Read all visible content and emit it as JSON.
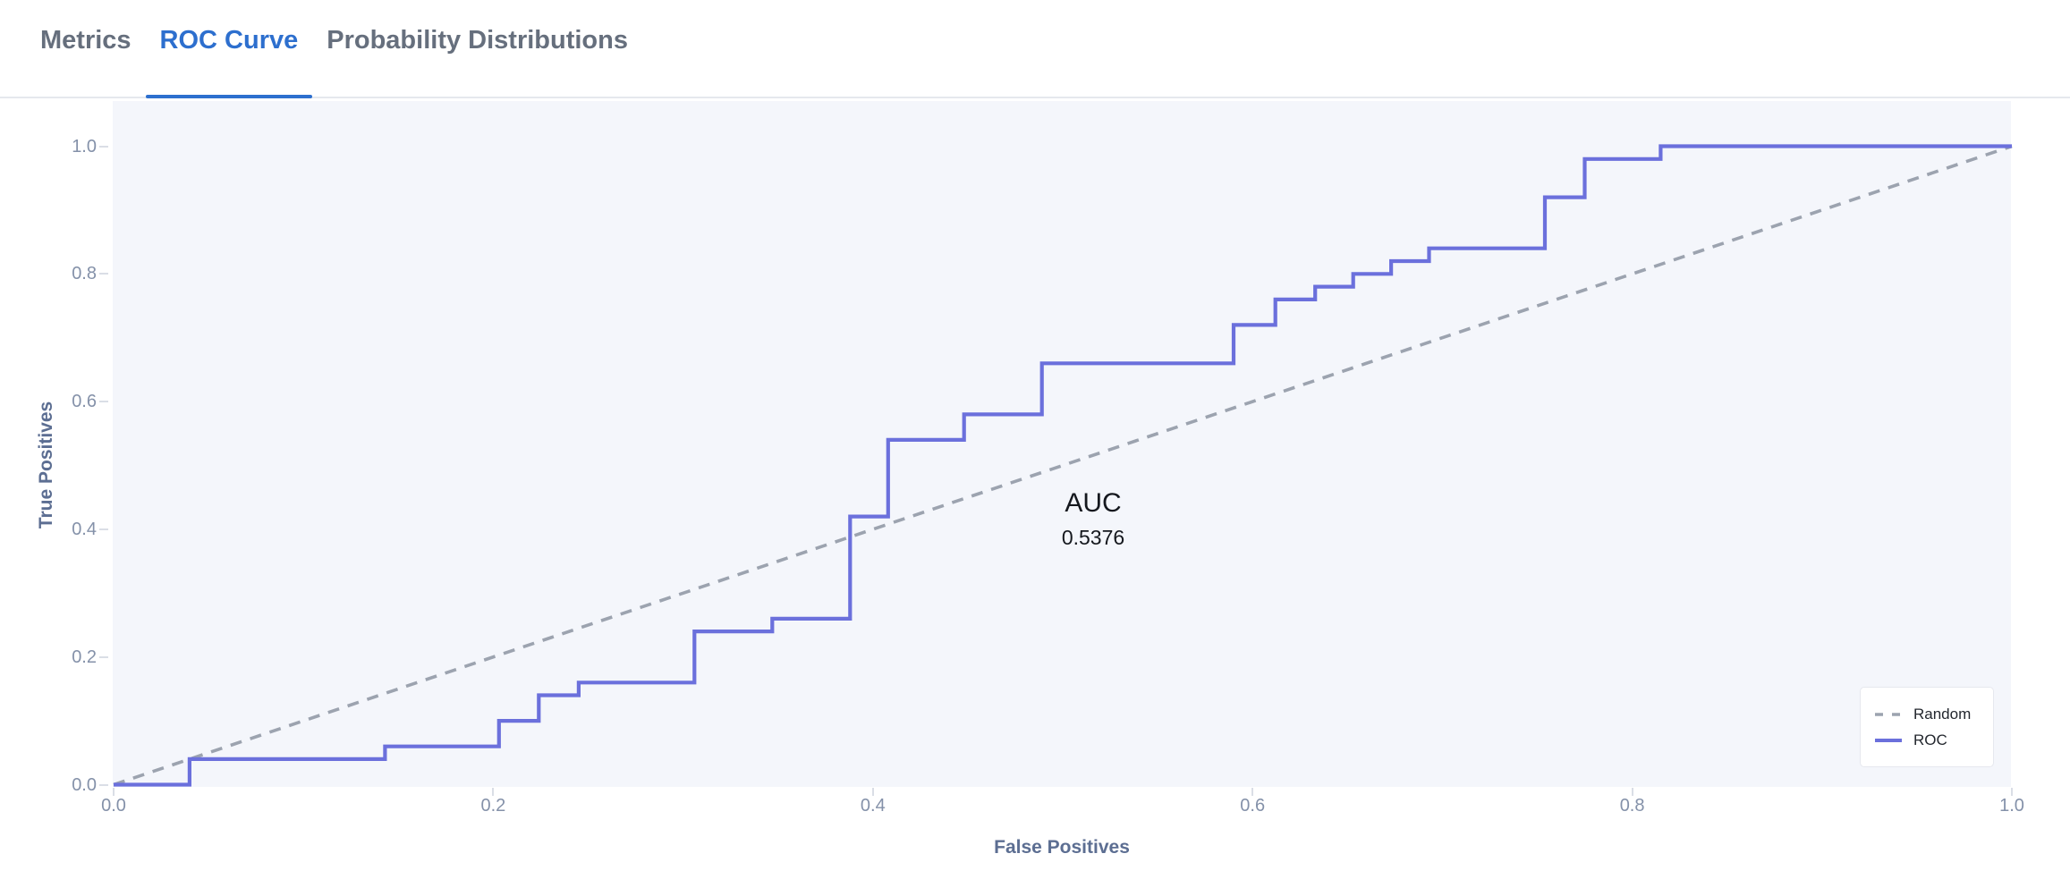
{
  "tabs": [
    {
      "label": "Metrics",
      "active": false
    },
    {
      "label": "ROC Curve",
      "active": true
    },
    {
      "label": "Probability Distributions",
      "active": false
    }
  ],
  "chart_data": {
    "type": "line",
    "title": "",
    "xlabel": "False Positives",
    "ylabel": "True Positives",
    "xlim": [
      0,
      1
    ],
    "ylim": [
      0,
      1
    ],
    "x_tick_labels": [
      "0.0",
      "0.2",
      "0.4",
      "0.6",
      "0.8",
      "1.0"
    ],
    "y_tick_labels": [
      "0.0",
      "0.2",
      "0.4",
      "0.6",
      "0.8",
      "1.0"
    ],
    "grid": false,
    "legend_position": "bottom-right",
    "annotation": {
      "label": "AUC",
      "value": "0.5376"
    },
    "series": [
      {
        "name": "Random",
        "style": "dashed",
        "color": "#9ca3af",
        "points": [
          [
            0,
            0
          ],
          [
            1,
            1
          ]
        ]
      },
      {
        "name": "ROC",
        "style": "solid",
        "color": "#6b70dc",
        "points": [
          [
            0,
            0
          ],
          [
            0.04,
            0
          ],
          [
            0.04,
            0.04
          ],
          [
            0.143,
            0.04
          ],
          [
            0.143,
            0.06
          ],
          [
            0.203,
            0.06
          ],
          [
            0.203,
            0.1
          ],
          [
            0.224,
            0.1
          ],
          [
            0.224,
            0.14
          ],
          [
            0.245,
            0.14
          ],
          [
            0.245,
            0.16
          ],
          [
            0.306,
            0.16
          ],
          [
            0.306,
            0.24
          ],
          [
            0.347,
            0.24
          ],
          [
            0.347,
            0.26
          ],
          [
            0.388,
            0.26
          ],
          [
            0.388,
            0.42
          ],
          [
            0.408,
            0.42
          ],
          [
            0.408,
            0.54
          ],
          [
            0.448,
            0.54
          ],
          [
            0.448,
            0.58
          ],
          [
            0.489,
            0.58
          ],
          [
            0.489,
            0.66
          ],
          [
            0.59,
            0.66
          ],
          [
            0.59,
            0.72
          ],
          [
            0.612,
            0.72
          ],
          [
            0.612,
            0.76
          ],
          [
            0.633,
            0.76
          ],
          [
            0.633,
            0.78
          ],
          [
            0.653,
            0.78
          ],
          [
            0.653,
            0.8
          ],
          [
            0.673,
            0.8
          ],
          [
            0.673,
            0.82
          ],
          [
            0.693,
            0.82
          ],
          [
            0.693,
            0.84
          ],
          [
            0.754,
            0.84
          ],
          [
            0.754,
            0.92
          ],
          [
            0.775,
            0.92
          ],
          [
            0.775,
            0.98
          ],
          [
            0.815,
            0.98
          ],
          [
            0.815,
            1.0
          ],
          [
            1.0,
            1.0
          ]
        ]
      }
    ]
  },
  "colors": {
    "tab_active": "#2d6fce",
    "tab_inactive": "#666f7d",
    "plot_background": "#f4f6fb",
    "roc_line": "#6b70dc",
    "random_line": "#9ca3af",
    "tick_label": "#8491a9",
    "axis_title": "#5c6e92"
  }
}
